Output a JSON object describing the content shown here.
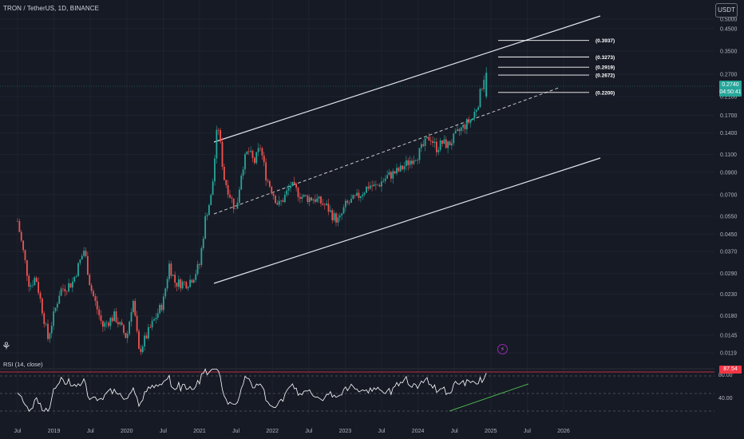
{
  "header": {
    "symbol_title": "TRON / TetherUS, 1D, BINANCE"
  },
  "currency_button": {
    "label": "USDT"
  },
  "price_badge": {
    "price": "0.2740",
    "countdown": "04:50:41",
    "color": "#26a69a"
  },
  "rsi": {
    "title": "RSI (14, close)",
    "current_value": "87.54",
    "upper_level": "80.00",
    "lower_level": "40.00",
    "line_color": "#ffffff",
    "badge_color": "#f23645"
  },
  "chart_data": {
    "type": "candlestick",
    "scale": "log",
    "price_ticks": [
      "0.5000",
      "0.4500",
      "0.3500",
      "0.2700",
      "0.2100",
      "0.1700",
      "0.1400",
      "0.1100",
      "0.0900",
      "0.0700",
      "0.0550",
      "0.0450",
      "0.0370",
      "0.0290",
      "0.0230",
      "0.0180",
      "0.0145",
      "0.0119"
    ],
    "time_ticks": [
      "Jul",
      "2019",
      "Jul",
      "2020",
      "Jul",
      "2021",
      "Jul",
      "2022",
      "Jul",
      "2023",
      "Jul",
      "2024",
      "Jul",
      "2025",
      "Jul",
      "2026"
    ],
    "target_levels": [
      {
        "label": "(0.3937)",
        "value": 0.3937
      },
      {
        "label": "(0.3273)",
        "value": 0.3273
      },
      {
        "label": "(0.2919)",
        "value": 0.2919
      },
      {
        "label": "(0.2672)",
        "value": 0.2672
      },
      {
        "label": "(0.2200)",
        "value": 0.22
      }
    ],
    "colors": {
      "up": "#26a69a",
      "down": "#ef5350",
      "channel": "#ffffff",
      "support": "#4caf50"
    },
    "anchors": [
      [
        "2018-07",
        0.052
      ],
      [
        "2018-09",
        0.025
      ],
      [
        "2018-10",
        0.028
      ],
      [
        "2018-12",
        0.014
      ],
      [
        "2019-02",
        0.024
      ],
      [
        "2019-04",
        0.026
      ],
      [
        "2019-06",
        0.038
      ],
      [
        "2019-07",
        0.025
      ],
      [
        "2019-09",
        0.016
      ],
      [
        "2019-11",
        0.018
      ],
      [
        "2020-01",
        0.014
      ],
      [
        "2020-02",
        0.022
      ],
      [
        "2020-03",
        0.012
      ],
      [
        "2020-05",
        0.016
      ],
      [
        "2020-07",
        0.021
      ],
      [
        "2020-08",
        0.032
      ],
      [
        "2020-09",
        0.026
      ],
      [
        "2020-11",
        0.026
      ],
      [
        "2020-12",
        0.028
      ],
      [
        "2021-01",
        0.032
      ],
      [
        "2021-02",
        0.055
      ],
      [
        "2021-03",
        0.07
      ],
      [
        "2021-04",
        0.16
      ],
      [
        "2021-05",
        0.085
      ],
      [
        "2021-06",
        0.07
      ],
      [
        "2021-07",
        0.058
      ],
      [
        "2021-08",
        0.095
      ],
      [
        "2021-09",
        0.115
      ],
      [
        "2021-10",
        0.1
      ],
      [
        "2021-11",
        0.12
      ],
      [
        "2021-12",
        0.085
      ],
      [
        "2022-02",
        0.062
      ],
      [
        "2022-03",
        0.068
      ],
      [
        "2022-04",
        0.078
      ],
      [
        "2022-06",
        0.068
      ],
      [
        "2022-08",
        0.067
      ],
      [
        "2022-10",
        0.061
      ],
      [
        "2022-11",
        0.055
      ],
      [
        "2022-12",
        0.052
      ],
      [
        "2023-01",
        0.062
      ],
      [
        "2023-03",
        0.068
      ],
      [
        "2023-05",
        0.078
      ],
      [
        "2023-06",
        0.076
      ],
      [
        "2023-07",
        0.081
      ],
      [
        "2023-08",
        0.086
      ],
      [
        "2023-10",
        0.092
      ],
      [
        "2023-12",
        0.105
      ],
      [
        "2024-01",
        0.11
      ],
      [
        "2024-03",
        0.135
      ],
      [
        "2024-04",
        0.118
      ],
      [
        "2024-05",
        0.125
      ],
      [
        "2024-06",
        0.122
      ],
      [
        "2024-08",
        0.145
      ],
      [
        "2024-09",
        0.155
      ],
      [
        "2024-10",
        0.165
      ],
      [
        "2024-11",
        0.2
      ],
      [
        "2024-12",
        0.274
      ]
    ]
  }
}
